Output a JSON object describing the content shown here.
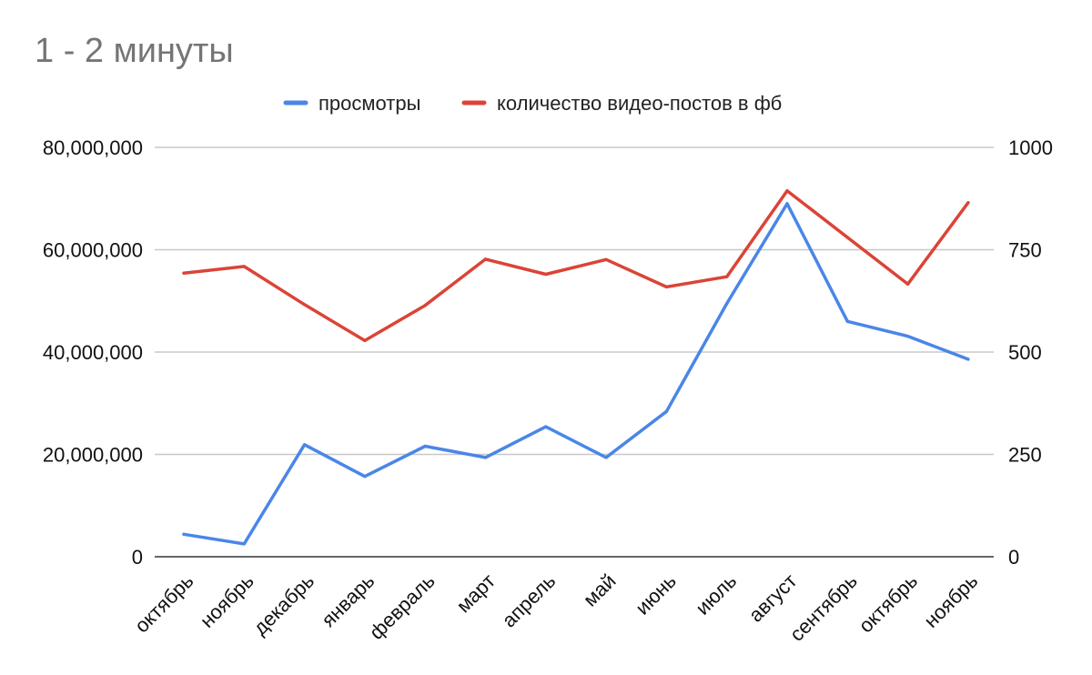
{
  "chart_data": {
    "type": "line",
    "title": "1 - 2 минуты",
    "categories": [
      "октябрь",
      "ноябрь",
      "декабрь",
      "январь",
      "февраль",
      "март",
      "апрель",
      "май",
      "июнь",
      "июль",
      "август",
      "сентябрь",
      "октябрь",
      "ноябрь"
    ],
    "series": [
      {
        "name": "просмотры",
        "axis": "left",
        "color": "#4a86e8",
        "values": [
          4400000,
          2500000,
          21900000,
          15700000,
          21600000,
          19400000,
          25400000,
          19400000,
          28400000,
          49500000,
          69000000,
          46000000,
          43100000,
          38600000
        ]
      },
      {
        "name": "количество видео-постов в фб",
        "axis": "right",
        "color": "#db4437",
        "values": [
          693,
          709,
          616,
          528,
          614,
          727,
          690,
          726,
          659,
          684,
          894,
          780,
          666,
          865
        ]
      }
    ],
    "y_left": {
      "min": 0,
      "max": 80000000,
      "ticks": [
        0,
        20000000,
        40000000,
        60000000,
        80000000
      ],
      "tick_labels": [
        "0",
        "20,000,000",
        "40,000,000",
        "60,000,000",
        "80,000,000"
      ]
    },
    "y_right": {
      "min": 0,
      "max": 1000,
      "ticks": [
        0,
        250,
        500,
        750,
        1000
      ],
      "tick_labels": [
        "0",
        "250",
        "500",
        "750",
        "1000"
      ]
    },
    "grid": true,
    "legend_position": "top-center"
  }
}
